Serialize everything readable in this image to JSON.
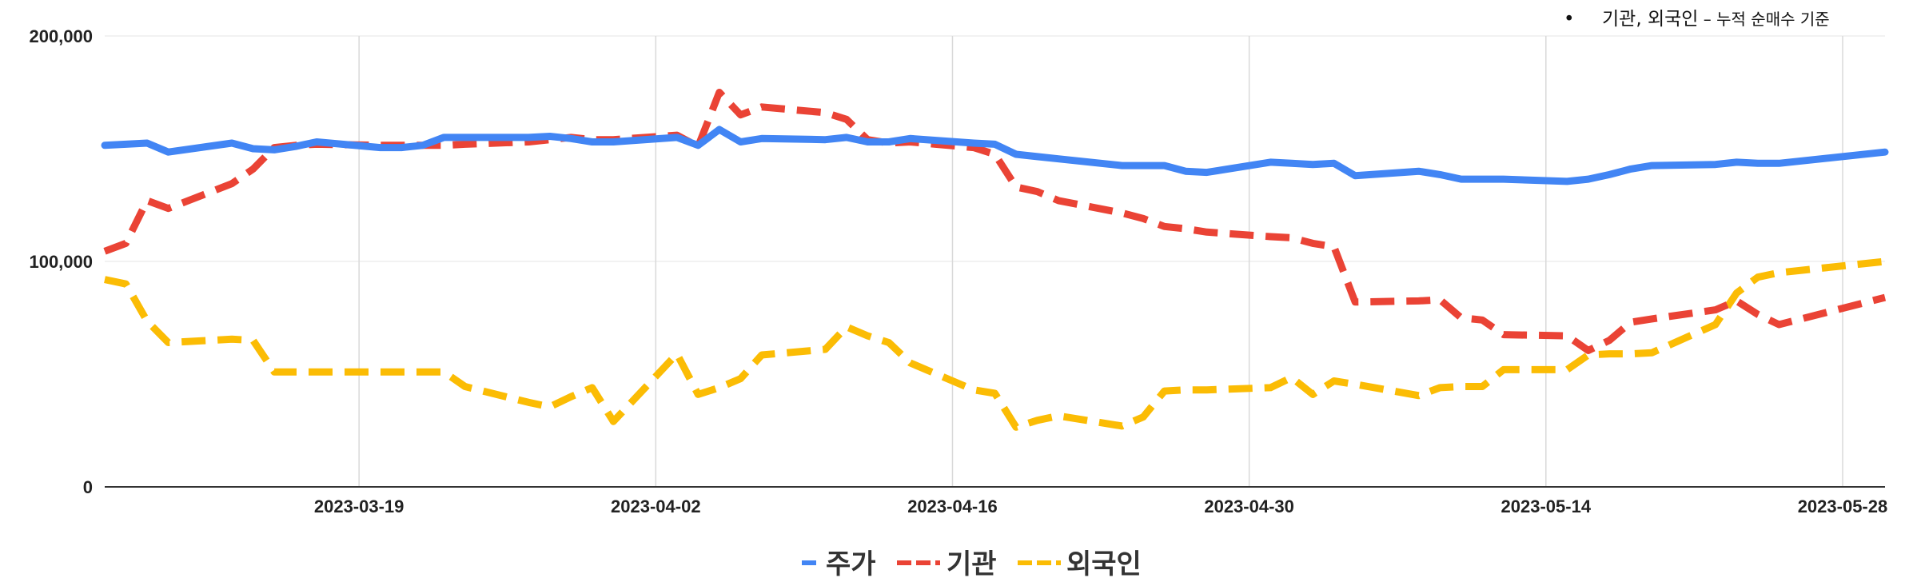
{
  "chart_data": {
    "type": "line",
    "annotation": {
      "bullet": "•",
      "main": "기관, 외국인",
      "sub": " – 누적 순매수 기준"
    },
    "ylim": [
      0,
      200000
    ],
    "yticks": [
      {
        "value": 0,
        "label": "0"
      },
      {
        "value": 100000,
        "label": "100,000"
      },
      {
        "value": 200000,
        "label": "200,000"
      }
    ],
    "xlim": [
      "2023-03-07",
      "2023-05-30"
    ],
    "xticks": [
      "2023-03-19",
      "2023-04-02",
      "2023-04-16",
      "2023-04-30",
      "2023-05-14",
      "2023-05-28"
    ],
    "legend_position": "bottom",
    "series": [
      {
        "name": "주가",
        "color": "#4285F4",
        "style": "solid",
        "points": [
          [
            "2023-03-07",
            151500
          ],
          [
            "2023-03-08",
            152000
          ],
          [
            "2023-03-09",
            152500
          ],
          [
            "2023-03-10",
            148500
          ],
          [
            "2023-03-13",
            152500
          ],
          [
            "2023-03-14",
            150000
          ],
          [
            "2023-03-15",
            149500
          ],
          [
            "2023-03-16",
            151000
          ],
          [
            "2023-03-17",
            153000
          ],
          [
            "2023-03-20",
            150500
          ],
          [
            "2023-03-21",
            150500
          ],
          [
            "2023-03-22",
            151500
          ],
          [
            "2023-03-23",
            155000
          ],
          [
            "2023-03-24",
            155000
          ],
          [
            "2023-03-27",
            155000
          ],
          [
            "2023-03-28",
            155500
          ],
          [
            "2023-03-29",
            154500
          ],
          [
            "2023-03-30",
            153000
          ],
          [
            "2023-03-31",
            153000
          ],
          [
            "2023-04-03",
            155000
          ],
          [
            "2023-04-04",
            151500
          ],
          [
            "2023-04-05",
            158500
          ],
          [
            "2023-04-06",
            153000
          ],
          [
            "2023-04-07",
            154500
          ],
          [
            "2023-04-10",
            154000
          ],
          [
            "2023-04-11",
            155000
          ],
          [
            "2023-04-12",
            153000
          ],
          [
            "2023-04-13",
            153000
          ],
          [
            "2023-04-14",
            154500
          ],
          [
            "2023-04-17",
            152500
          ],
          [
            "2023-04-18",
            152000
          ],
          [
            "2023-04-19",
            147500
          ],
          [
            "2023-04-20",
            146500
          ],
          [
            "2023-04-21",
            145500
          ],
          [
            "2023-04-24",
            142500
          ],
          [
            "2023-04-25",
            142500
          ],
          [
            "2023-04-26",
            142500
          ],
          [
            "2023-04-27",
            140000
          ],
          [
            "2023-04-28",
            139500
          ],
          [
            "2023-05-01",
            144000
          ],
          [
            "2023-05-02",
            143500
          ],
          [
            "2023-05-03",
            143000
          ],
          [
            "2023-05-04",
            143500
          ],
          [
            "2023-05-05",
            138000
          ],
          [
            "2023-05-08",
            140000
          ],
          [
            "2023-05-09",
            138500
          ],
          [
            "2023-05-10",
            136500
          ],
          [
            "2023-05-11",
            136500
          ],
          [
            "2023-05-12",
            136500
          ],
          [
            "2023-05-15",
            135500
          ],
          [
            "2023-05-16",
            136500
          ],
          [
            "2023-05-17",
            138500
          ],
          [
            "2023-05-18",
            141000
          ],
          [
            "2023-05-19",
            142500
          ],
          [
            "2023-05-22",
            143000
          ],
          [
            "2023-05-23",
            144000
          ],
          [
            "2023-05-24",
            143500
          ],
          [
            "2023-05-25",
            143500
          ],
          [
            "2023-05-30",
            148500
          ]
        ]
      },
      {
        "name": "기관",
        "color": "#EA4335",
        "style": "dashed",
        "points": [
          [
            "2023-03-07",
            104500
          ],
          [
            "2023-03-08",
            108000
          ],
          [
            "2023-03-09",
            127000
          ],
          [
            "2023-03-10",
            123500
          ],
          [
            "2023-03-13",
            134500
          ],
          [
            "2023-03-14",
            141000
          ],
          [
            "2023-03-15",
            150500
          ],
          [
            "2023-03-16",
            151500
          ],
          [
            "2023-03-17",
            152000
          ],
          [
            "2023-03-20",
            151500
          ],
          [
            "2023-03-21",
            151500
          ],
          [
            "2023-03-22",
            151500
          ],
          [
            "2023-03-23",
            151500
          ],
          [
            "2023-03-24",
            152000
          ],
          [
            "2023-03-27",
            153000
          ],
          [
            "2023-03-28",
            154000
          ],
          [
            "2023-03-29",
            155000
          ],
          [
            "2023-03-30",
            154000
          ],
          [
            "2023-03-31",
            154000
          ],
          [
            "2023-04-03",
            156000
          ],
          [
            "2023-04-04",
            151000
          ],
          [
            "2023-04-05",
            175000
          ],
          [
            "2023-04-06",
            165000
          ],
          [
            "2023-04-07",
            168500
          ],
          [
            "2023-04-10",
            166000
          ],
          [
            "2023-04-11",
            163000
          ],
          [
            "2023-04-12",
            154000
          ],
          [
            "2023-04-13",
            152500
          ],
          [
            "2023-04-14",
            153000
          ],
          [
            "2023-04-17",
            150500
          ],
          [
            "2023-04-18",
            147500
          ],
          [
            "2023-04-19",
            133000
          ],
          [
            "2023-04-20",
            131000
          ],
          [
            "2023-04-21",
            127000
          ],
          [
            "2023-04-24",
            121500
          ],
          [
            "2023-04-25",
            119000
          ],
          [
            "2023-04-26",
            115500
          ],
          [
            "2023-04-27",
            114500
          ],
          [
            "2023-04-28",
            113000
          ],
          [
            "2023-05-01",
            111000
          ],
          [
            "2023-05-02",
            110500
          ],
          [
            "2023-05-03",
            108000
          ],
          [
            "2023-05-04",
            106500
          ],
          [
            "2023-05-05",
            82000
          ],
          [
            "2023-05-08",
            82500
          ],
          [
            "2023-05-09",
            83000
          ],
          [
            "2023-05-10",
            75000
          ],
          [
            "2023-05-11",
            74000
          ],
          [
            "2023-05-12",
            67500
          ],
          [
            "2023-05-15",
            67000
          ],
          [
            "2023-05-16",
            60500
          ],
          [
            "2023-05-17",
            65000
          ],
          [
            "2023-05-18",
            73000
          ],
          [
            "2023-05-19",
            74500
          ],
          [
            "2023-05-22",
            78500
          ],
          [
            "2023-05-23",
            82500
          ],
          [
            "2023-05-24",
            76500
          ],
          [
            "2023-05-25",
            72000
          ],
          [
            "2023-05-30",
            84000
          ]
        ]
      },
      {
        "name": "외국인",
        "color": "#FBBC04",
        "style": "dashed",
        "points": [
          [
            "2023-03-07",
            92000
          ],
          [
            "2023-03-08",
            90000
          ],
          [
            "2023-03-09",
            73500
          ],
          [
            "2023-03-10",
            64000
          ],
          [
            "2023-03-13",
            65500
          ],
          [
            "2023-03-14",
            65000
          ],
          [
            "2023-03-15",
            51000
          ],
          [
            "2023-03-16",
            51000
          ],
          [
            "2023-03-17",
            51000
          ],
          [
            "2023-03-20",
            51000
          ],
          [
            "2023-03-21",
            51000
          ],
          [
            "2023-03-22",
            51000
          ],
          [
            "2023-03-23",
            51000
          ],
          [
            "2023-03-24",
            44500
          ],
          [
            "2023-03-27",
            37500
          ],
          [
            "2023-03-28",
            35500
          ],
          [
            "2023-03-29",
            40000
          ],
          [
            "2023-03-30",
            44000
          ],
          [
            "2023-03-31",
            29000
          ],
          [
            "2023-04-03",
            59000
          ],
          [
            "2023-04-04",
            41000
          ],
          [
            "2023-04-05",
            44000
          ],
          [
            "2023-04-06",
            48000
          ],
          [
            "2023-04-07",
            58500
          ],
          [
            "2023-04-10",
            61000
          ],
          [
            "2023-04-11",
            71000
          ],
          [
            "2023-04-12",
            67000
          ],
          [
            "2023-04-13",
            64000
          ],
          [
            "2023-04-14",
            55000
          ],
          [
            "2023-04-17",
            43000
          ],
          [
            "2023-04-18",
            41500
          ],
          [
            "2023-04-19",
            26500
          ],
          [
            "2023-04-20",
            29500
          ],
          [
            "2023-04-21",
            31500
          ],
          [
            "2023-04-24",
            27000
          ],
          [
            "2023-04-25",
            31000
          ],
          [
            "2023-04-26",
            42500
          ],
          [
            "2023-04-27",
            43000
          ],
          [
            "2023-04-28",
            43000
          ],
          [
            "2023-05-01",
            44000
          ],
          [
            "2023-05-02",
            48500
          ],
          [
            "2023-05-03",
            41000
          ],
          [
            "2023-05-04",
            47000
          ],
          [
            "2023-05-05",
            45500
          ],
          [
            "2023-05-08",
            40500
          ],
          [
            "2023-05-09",
            44000
          ],
          [
            "2023-05-10",
            44500
          ],
          [
            "2023-05-11",
            44500
          ],
          [
            "2023-05-12",
            52000
          ],
          [
            "2023-05-15",
            52000
          ],
          [
            "2023-05-16",
            58500
          ],
          [
            "2023-05-17",
            59000
          ],
          [
            "2023-05-18",
            59000
          ],
          [
            "2023-05-19",
            59500
          ],
          [
            "2023-05-22",
            72000
          ],
          [
            "2023-05-23",
            86000
          ],
          [
            "2023-05-24",
            93000
          ],
          [
            "2023-05-25",
            95000
          ],
          [
            "2023-05-30",
            100000
          ]
        ]
      }
    ]
  }
}
